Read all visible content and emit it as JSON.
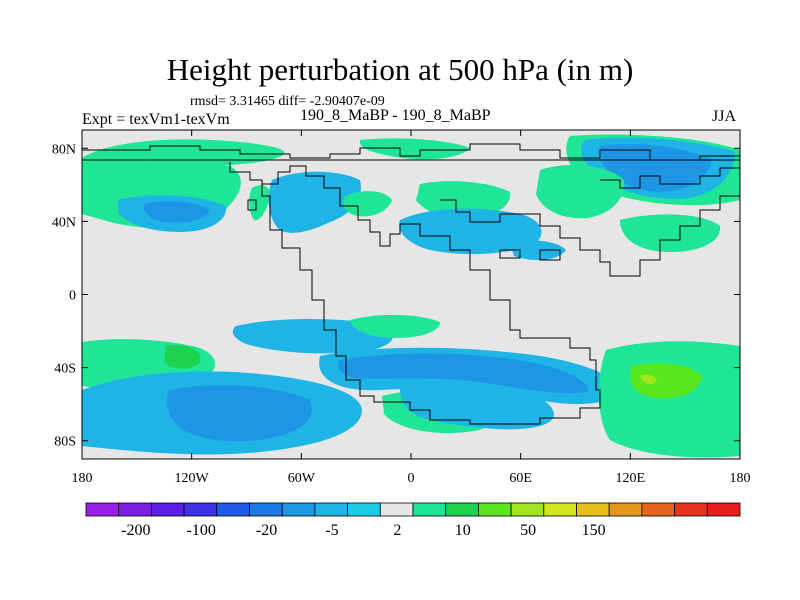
{
  "title": "Height perturbation at 500 hPa (in m)",
  "stats": "rmsd= 3.31465 diff= -2.90407e-09",
  "left_label": "Expt = texVm1-texVm",
  "center_label": "190_8_MaBP - 190_8_MaBP",
  "right_label": "JJA",
  "map": {
    "lon_range": [
      -180,
      180
    ],
    "lat_range": [
      -90,
      90
    ],
    "lon_ticks": [
      {
        "value": -180,
        "label": "180"
      },
      {
        "value": -120,
        "label": "120W"
      },
      {
        "value": -60,
        "label": "60W"
      },
      {
        "value": 0,
        "label": "0"
      },
      {
        "value": 60,
        "label": "60E"
      },
      {
        "value": 120,
        "label": "120E"
      },
      {
        "value": 180,
        "label": "180"
      }
    ],
    "lat_ticks": [
      {
        "value": 80,
        "label": "80N"
      },
      {
        "value": 40,
        "label": "40N"
      },
      {
        "value": 0,
        "label": "0"
      },
      {
        "value": -40,
        "label": "40S"
      },
      {
        "value": -80,
        "label": "80S"
      }
    ],
    "background_color": "#e6e6e6"
  },
  "colorbar": {
    "colors": [
      "#9b1ee6",
      "#7a1ee6",
      "#5a1ee6",
      "#3c32e6",
      "#1e5ae6",
      "#1e78e6",
      "#1e96e6",
      "#1eb4e6",
      "#1ecce6",
      "#e6e6e6",
      "#1ee696",
      "#1ed250",
      "#5ae61e",
      "#a0e61e",
      "#d2e61e",
      "#e6be1e",
      "#e6961e",
      "#e6641e",
      "#e6321e",
      "#e61e1e"
    ],
    "labels": [
      "-200",
      "-100",
      "-20",
      "-5",
      "2",
      "10",
      "50",
      "150"
    ]
  }
}
